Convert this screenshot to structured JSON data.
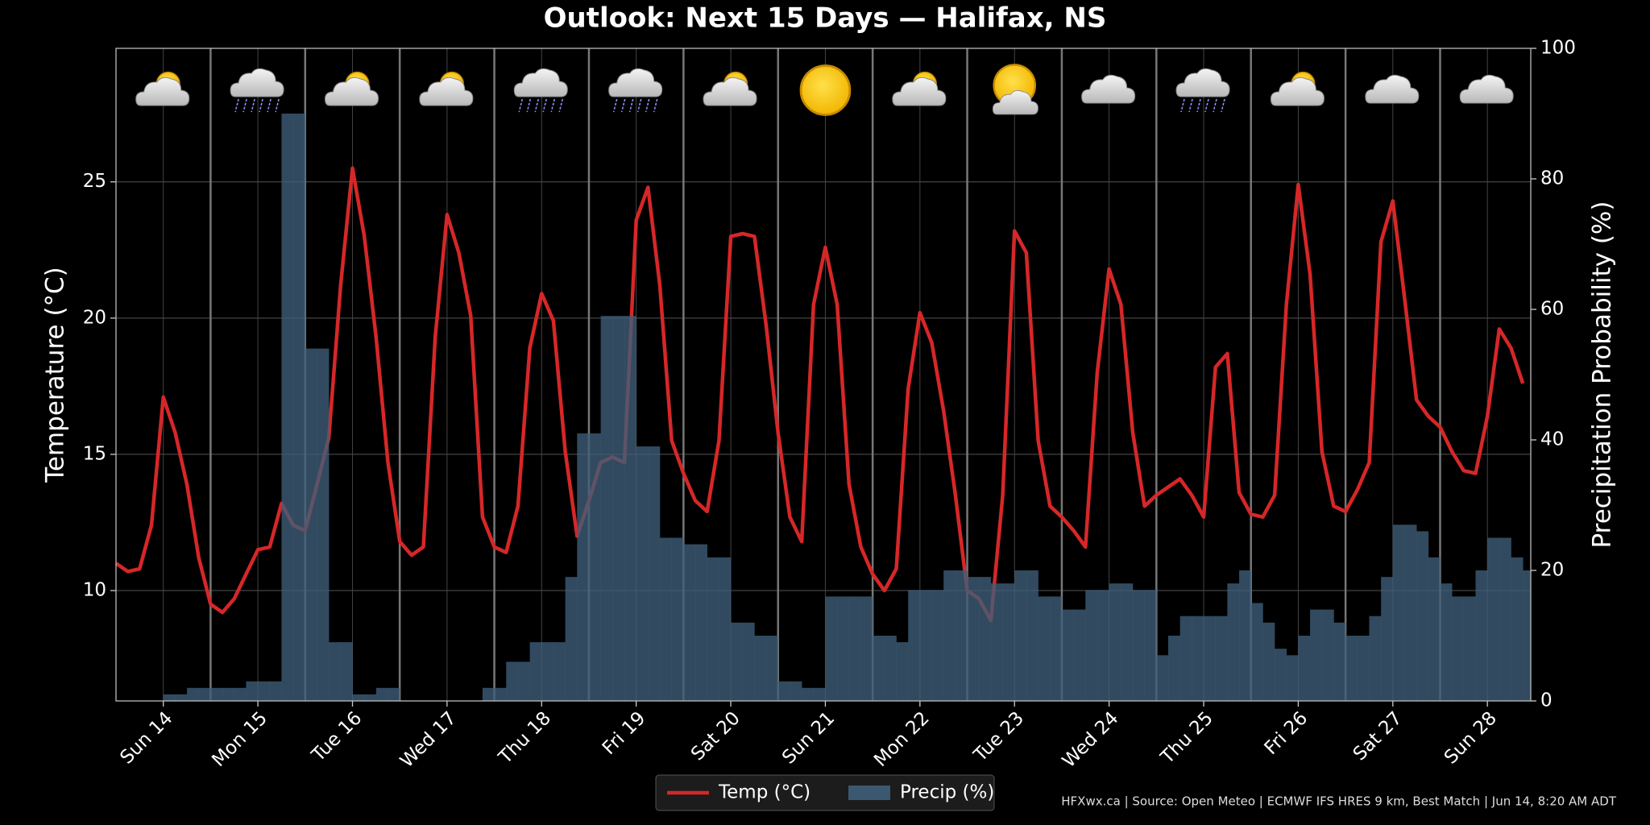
{
  "chart_data": {
    "type": "line",
    "title": "Outlook: Next 15 Days — Halifax, NS",
    "ylabel": "Temperature (°C)",
    "y2label": "Precipitation Probability (%)",
    "source": "HFXwx.ca | Source: Open Meteo | ECMWF IFS HRES 9 km, Best Match | Jun 14, 8:20 AM ADT",
    "xlim": [
      0,
      359
    ],
    "xticks": [
      {
        "value": 12,
        "label": "Sun 14"
      },
      {
        "value": 36,
        "label": "Mon 15"
      },
      {
        "value": 60,
        "label": "Tue 16"
      },
      {
        "value": 84,
        "label": "Wed 17"
      },
      {
        "value": 108,
        "label": "Thu 18"
      },
      {
        "value": 132,
        "label": "Fri 19"
      },
      {
        "value": 156,
        "label": "Sat 20"
      },
      {
        "value": 180,
        "label": "Sun 21"
      },
      {
        "value": 204,
        "label": "Mon 22"
      },
      {
        "value": 228,
        "label": "Tue 23"
      },
      {
        "value": 252,
        "label": "Wed 24"
      },
      {
        "value": 276,
        "label": "Thu 25"
      },
      {
        "value": 300,
        "label": "Fri 26"
      },
      {
        "value": 324,
        "label": "Sat 27"
      },
      {
        "value": 348,
        "label": "Sun 28"
      }
    ],
    "xgrid_major": [
      24,
      48,
      72,
      96,
      120,
      144,
      168,
      192,
      216,
      240,
      264,
      288,
      312,
      336
    ],
    "ylim": [
      5.95,
      29.9
    ],
    "yticks": [
      10,
      15,
      20,
      25
    ],
    "y2lim": [
      0,
      100
    ],
    "y2ticks": [
      0,
      20,
      40,
      60,
      80,
      100
    ],
    "grid": true,
    "legend": "lower center",
    "x": [
      0,
      3,
      6,
      9,
      12,
      15,
      18,
      21,
      24,
      27,
      30,
      33,
      36,
      39,
      42,
      45,
      48,
      51,
      54,
      57,
      60,
      63,
      66,
      69,
      72,
      75,
      78,
      81,
      84,
      87,
      90,
      93,
      96,
      99,
      102,
      105,
      108,
      111,
      114,
      117,
      120,
      123,
      126,
      129,
      132,
      135,
      138,
      141,
      144,
      147,
      150,
      153,
      156,
      159,
      162,
      165,
      168,
      171,
      174,
      177,
      180,
      183,
      186,
      189,
      192,
      195,
      198,
      201,
      204,
      207,
      210,
      213,
      216,
      219,
      222,
      225,
      228,
      231,
      234,
      237,
      240,
      243,
      246,
      249,
      252,
      255,
      258,
      261,
      264,
      267,
      270,
      273,
      276,
      279,
      282,
      285,
      288,
      291,
      294,
      297,
      300,
      303,
      306,
      309,
      312,
      315,
      318,
      321,
      324,
      327,
      330,
      333,
      336,
      339,
      342,
      345,
      348,
      351,
      354,
      357
    ],
    "series": [
      {
        "name": "Temp (°C)",
        "type": "line",
        "color": "#d62728",
        "axis": "y",
        "values": [
          11.0,
          10.7,
          10.8,
          12.4,
          17.1,
          15.8,
          13.9,
          11.2,
          9.5,
          9.2,
          9.7,
          10.6,
          11.5,
          11.6,
          13.2,
          12.4,
          12.2,
          13.9,
          15.6,
          21.2,
          25.5,
          23.0,
          19.3,
          14.7,
          11.8,
          11.3,
          11.6,
          19.3,
          23.8,
          22.4,
          20.1,
          12.7,
          11.6,
          11.4,
          13.1,
          18.9,
          20.9,
          19.9,
          15.1,
          12.0,
          13.3,
          14.7,
          14.9,
          14.7,
          23.6,
          24.8,
          21.2,
          15.5,
          14.3,
          13.3,
          12.9,
          15.5,
          23.0,
          23.1,
          23.0,
          19.7,
          15.8,
          12.7,
          11.8,
          20.5,
          22.6,
          20.5,
          13.9,
          11.6,
          10.6,
          10.0,
          10.8,
          17.4,
          20.2,
          19.1,
          16.6,
          13.5,
          10.0,
          9.7,
          8.9,
          13.5,
          23.2,
          22.4,
          15.5,
          13.1,
          12.7,
          12.2,
          11.6,
          18.0,
          21.8,
          20.5,
          15.8,
          13.1,
          13.5,
          13.8,
          14.1,
          13.5,
          12.7,
          18.2,
          18.7,
          13.6,
          12.8,
          12.7,
          13.5,
          20.5,
          24.9,
          21.6,
          15.1,
          13.1,
          12.9,
          13.7,
          14.7,
          22.8,
          24.3,
          20.7,
          17.0,
          16.4,
          16.0,
          15.1,
          14.4,
          14.3,
          16.4,
          19.6,
          18.9,
          17.6
        ]
      },
      {
        "name": "Precip (%)",
        "type": "bar",
        "color": "#3f5f7a",
        "axis": "y2",
        "values": [
          0,
          0,
          0,
          0,
          1,
          1,
          2,
          2,
          2,
          2,
          2,
          3,
          3,
          3,
          90,
          90,
          54,
          54,
          9,
          9,
          1,
          1,
          2,
          2,
          0,
          0,
          0,
          0,
          0,
          0,
          0,
          2,
          2,
          6,
          6,
          9,
          9,
          9,
          19,
          41,
          41,
          59,
          59,
          59,
          39,
          39,
          25,
          25,
          24,
          24,
          22,
          22,
          12,
          12,
          10,
          10,
          3,
          3,
          2,
          2,
          16,
          16,
          16,
          16,
          10,
          10,
          9,
          17,
          17,
          17,
          20,
          20,
          19,
          19,
          18,
          18,
          20,
          20,
          16,
          16,
          14,
          14,
          17,
          17,
          18,
          18,
          17,
          17,
          7,
          10,
          13,
          13,
          13,
          13,
          18,
          20,
          15,
          12,
          8,
          7,
          10,
          14,
          14,
          12,
          10,
          10,
          13,
          19,
          27,
          27,
          26,
          22,
          18,
          16,
          16,
          20,
          25,
          25,
          22,
          20
        ]
      }
    ]
  }
}
